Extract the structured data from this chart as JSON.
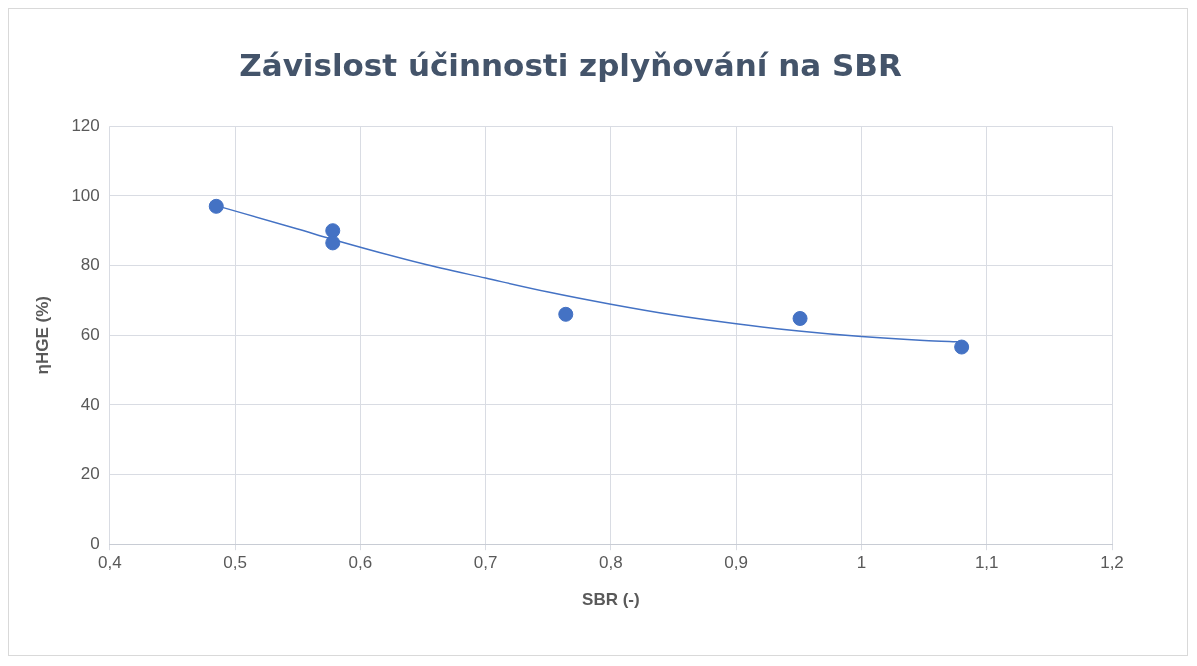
{
  "chart_data": {
    "type": "scatter",
    "title": "Závislost účinnosti zplyňování na SBR",
    "xlabel": "SBR (-)",
    "ylabel": "ηHGE (%)",
    "series": [
      {
        "type": "scatter",
        "marker": "circle",
        "color": "#4472c4",
        "x": [
          0.485,
          0.578,
          0.578,
          0.764,
          0.951,
          1.08
        ],
        "values": [
          97,
          90,
          86.5,
          66,
          64.8,
          56.6
        ]
      },
      {
        "type": "line",
        "marker": "none",
        "color": "#4472c4",
        "x": [
          0.485,
          0.55,
          0.578,
          0.65,
          0.7,
          0.75,
          0.8,
          0.85,
          0.9,
          0.95,
          1.0,
          1.05,
          1.08
        ],
        "values": [
          97.2,
          90.5,
          87.5,
          80.5,
          76.4,
          72.4,
          68.9,
          65.8,
          63.3,
          61.2,
          59.6,
          58.5,
          58.1
        ]
      }
    ],
    "xlim": [
      0.4,
      1.2
    ],
    "xticks": [
      {
        "value": 0.4,
        "label": "0,4"
      },
      {
        "value": 0.5,
        "label": "0,5"
      },
      {
        "value": 0.6,
        "label": "0,6"
      },
      {
        "value": 0.7,
        "label": "0,7"
      },
      {
        "value": 0.8,
        "label": "0,8"
      },
      {
        "value": 0.9,
        "label": "0,9"
      },
      {
        "value": 1,
        "label": "1"
      },
      {
        "value": 1.1,
        "label": "1,1"
      },
      {
        "value": 1.2,
        "label": "1,2"
      }
    ],
    "ylim": [
      0,
      120
    ],
    "yticks": [
      0,
      20,
      40,
      60,
      80,
      100,
      120
    ],
    "grid": true,
    "line_style": "solid",
    "legend": false
  }
}
